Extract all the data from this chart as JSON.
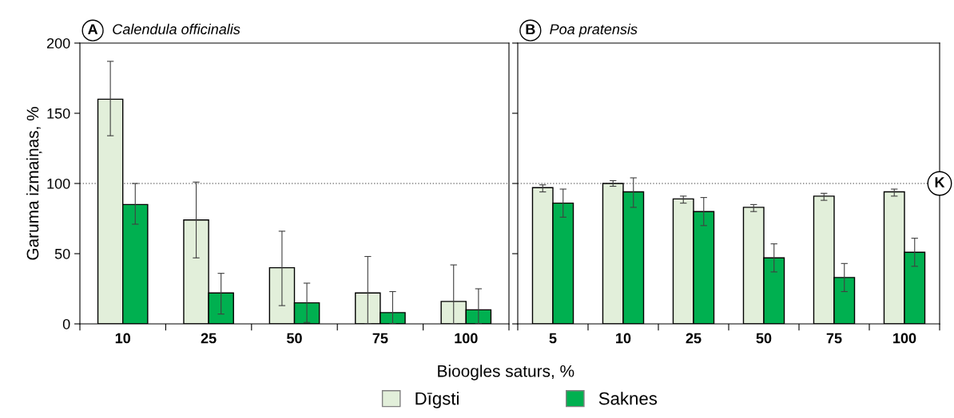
{
  "chart_data": [
    {
      "type": "bar",
      "title": "A",
      "subtitle": "Calendula officinalis",
      "xlabel": "Bioogles saturs, %",
      "ylabel": "Garuma izmaiņas, %",
      "categories": [
        "10",
        "25",
        "50",
        "75",
        "100"
      ],
      "ylim": [
        0,
        200
      ],
      "yticks": [
        0,
        50,
        100,
        150,
        200
      ],
      "grid": false,
      "legend": "bottom",
      "ref_lines": [
        {
          "axis": "y",
          "value": 100,
          "line_style": "dotted",
          "color": "#808080"
        }
      ],
      "series": [
        {
          "name": "Dīgsti",
          "color": "#e2efda",
          "values": [
            160,
            74,
            40,
            22,
            16
          ],
          "errors": [
            [
              134,
              187
            ],
            [
              47,
              101
            ],
            [
              13,
              66
            ],
            [
              0,
              48
            ],
            [
              0,
              42
            ]
          ]
        },
        {
          "name": "Saknes",
          "color": "#00b050",
          "values": [
            85,
            22,
            15,
            8,
            10
          ],
          "errors": [
            [
              71,
              100
            ],
            [
              7,
              36
            ],
            [
              1,
              29
            ],
            [
              0,
              23
            ],
            [
              0,
              25
            ]
          ]
        }
      ]
    },
    {
      "type": "bar",
      "title": "B",
      "subtitle": "Poa pratensis",
      "categories": [
        "5",
        "10",
        "25",
        "50",
        "75",
        "100"
      ],
      "ylim": [
        0,
        200
      ],
      "yticks": [
        {
          "value": 0,
          "label": null
        },
        {
          "value": 50,
          "label": null
        },
        {
          "value": 100,
          "label": null
        },
        {
          "value": 150,
          "label": null
        },
        {
          "value": 200,
          "label": null
        }
      ],
      "tick_labels": "x",
      "grid": false,
      "ref_lines": [
        {
          "axis": "y",
          "value": 100,
          "label": "K",
          "line_style": "dotted",
          "color": "#808080"
        }
      ],
      "series": [
        {
          "name": "Dīgsti",
          "color": "#e2efda",
          "values": [
            97,
            100,
            89,
            83,
            91,
            94
          ],
          "errors": [
            [
              94,
              99
            ],
            [
              98,
              102
            ],
            [
              86,
              91
            ],
            [
              80,
              85
            ],
            [
              88,
              93
            ],
            [
              91,
              96
            ]
          ]
        },
        {
          "name": "Saknes",
          "color": "#00b050",
          "values": [
            86,
            94,
            80,
            47,
            33,
            51
          ],
          "errors": [
            [
              76,
              96
            ],
            [
              83,
              104
            ],
            [
              70,
              90
            ],
            [
              37,
              57
            ],
            [
              23,
              43
            ],
            [
              41,
              61
            ]
          ]
        }
      ]
    }
  ]
}
